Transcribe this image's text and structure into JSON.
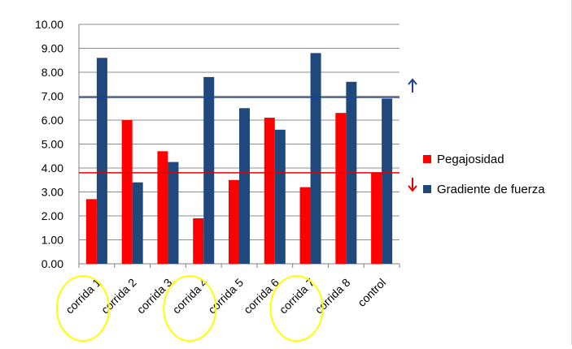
{
  "chart_data": {
    "type": "bar",
    "categories": [
      "corrida 1",
      "corrida 2",
      "corrida 3",
      "corrida 4",
      "corrida 5",
      "corrida 6",
      "corrida 7",
      "corrida 8",
      "control"
    ],
    "series": [
      {
        "name": "Pegajosidad",
        "color": "#ff0000",
        "values": [
          2.7,
          6.0,
          4.7,
          1.9,
          3.5,
          6.1,
          3.2,
          6.3,
          3.8
        ]
      },
      {
        "name": "Gradiente de fuerza",
        "color": "#1f497d",
        "values": [
          8.6,
          3.4,
          4.25,
          7.8,
          6.5,
          5.6,
          8.8,
          7.6,
          6.9
        ]
      }
    ],
    "yticks": [
      "0.00",
      "1.00",
      "2.00",
      "3.00",
      "4.00",
      "5.00",
      "6.00",
      "7.00",
      "8.00",
      "9.00",
      "10.00"
    ],
    "ylim": [
      0,
      10
    ],
    "grid": true,
    "legend_position": "right",
    "reference_lines": [
      {
        "value": 6.95,
        "color": "#1f3f9a",
        "arrow": "up"
      },
      {
        "value": 3.8,
        "color": "#e00000",
        "arrow": "down"
      }
    ],
    "highlighted_categories": [
      "corrida 1",
      "corrida 4",
      "corrida 7"
    ],
    "highlight_color": "#ffff00"
  }
}
